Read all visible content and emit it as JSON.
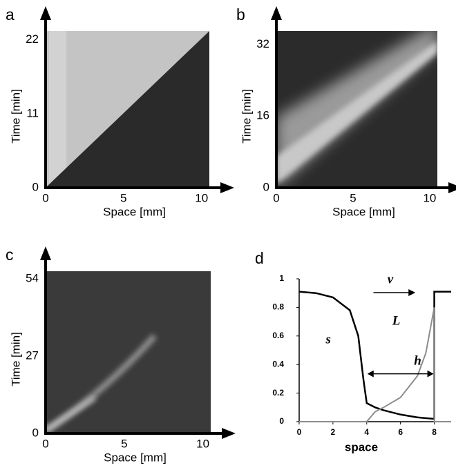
{
  "chart_data": [
    {
      "type": "image",
      "panel": "a",
      "xlabel": "Space [mm]",
      "ylabel": "Time [min]",
      "xlim": [
        0,
        10.5
      ],
      "ylim": [
        0,
        23.3
      ],
      "xticks": [
        0,
        5,
        10
      ],
      "yticks": [
        0,
        11,
        22
      ]
    },
    {
      "type": "image",
      "panel": "b",
      "xlabel": "Space [mm]",
      "ylabel": "Time [min]",
      "xlim": [
        0,
        10.5
      ],
      "ylim": [
        0,
        35
      ],
      "xticks": [
        0,
        5,
        10
      ],
      "yticks": [
        0,
        16,
        32
      ]
    },
    {
      "type": "image",
      "panel": "c",
      "xlabel": "Space [mm]",
      "ylabel": "Time [min]",
      "xlim": [
        0,
        10.5
      ],
      "ylim": [
        0,
        56.7
      ],
      "xticks": [
        0,
        5,
        10
      ],
      "yticks": [
        0,
        27,
        54
      ]
    },
    {
      "type": "line",
      "panel": "d",
      "xlabel": "space",
      "annotations": [
        "v",
        "L"
      ],
      "xlim": [
        0,
        9
      ],
      "ylim": [
        0,
        1
      ],
      "xticks": [
        0,
        2,
        4,
        6,
        8
      ],
      "yticks": [
        0,
        0.2,
        0.4,
        0.6,
        0.8,
        1
      ],
      "x": [
        0,
        1,
        2,
        3,
        3.5,
        3.8,
        4,
        4.5,
        5,
        6,
        7,
        7.5,
        8,
        8,
        9
      ],
      "series": [
        {
          "name": "s",
          "color": "#000000",
          "values": [
            0.91,
            0.9,
            0.87,
            0.78,
            0.6,
            0.3,
            0.13,
            0.1,
            0.08,
            0.05,
            0.03,
            0.025,
            0.02,
            0.91,
            0.91
          ]
        },
        {
          "name": "h",
          "color": "#8c8c8c",
          "values": [
            0,
            0,
            0,
            0,
            0,
            0,
            0,
            0.07,
            0.1,
            0.17,
            0.32,
            0.48,
            0.8,
            0,
            0
          ]
        }
      ]
    }
  ]
}
